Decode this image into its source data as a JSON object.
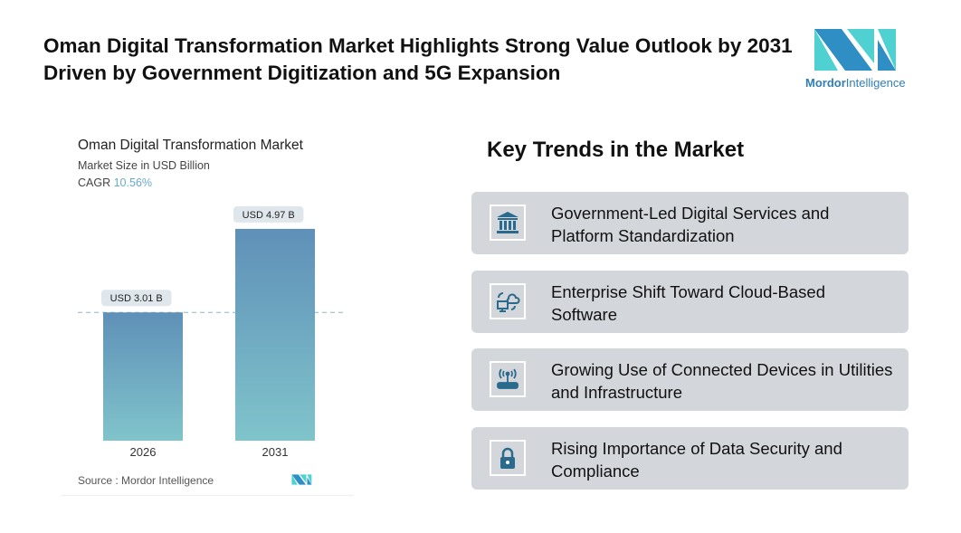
{
  "header": {
    "title": "Oman Digital Transformation Market Highlights Strong Value Outlook by 2031 Driven by Government Digitization and 5G Expansion"
  },
  "logo": {
    "brand_bold": "Mordor",
    "brand_light": "Intelligence",
    "colors": [
      "#2f8fc4",
      "#4fd1d1"
    ]
  },
  "chart_data": {
    "type": "bar",
    "title": "Oman Digital Transformation Market",
    "subtitle": "Market Size in USD Billion",
    "cagr_label": "CAGR",
    "cagr_value": "10.56%",
    "categories": [
      "2026",
      "2031"
    ],
    "values": [
      3.01,
      4.97
    ],
    "data_labels": [
      "USD 3.01 B",
      "USD 4.97 B"
    ],
    "source": "Source :  Mordor Intelligence",
    "colors": {
      "top": "#5f90b8",
      "bottom": "#80c4cb"
    }
  },
  "trends": {
    "heading": "Key Trends in the Market",
    "items": [
      {
        "icon": "government-building-icon",
        "text": "Government-Led Digital Services and Platform Standardization"
      },
      {
        "icon": "cloud-computer-sync-icon",
        "text": "Enterprise Shift Toward Cloud-Based Software"
      },
      {
        "icon": "wireless-router-icon",
        "text": "Growing Use of Connected Devices in Utilities and Infrastructure"
      },
      {
        "icon": "padlock-icon",
        "text": "Rising Importance of Data Security and Compliance"
      }
    ]
  }
}
